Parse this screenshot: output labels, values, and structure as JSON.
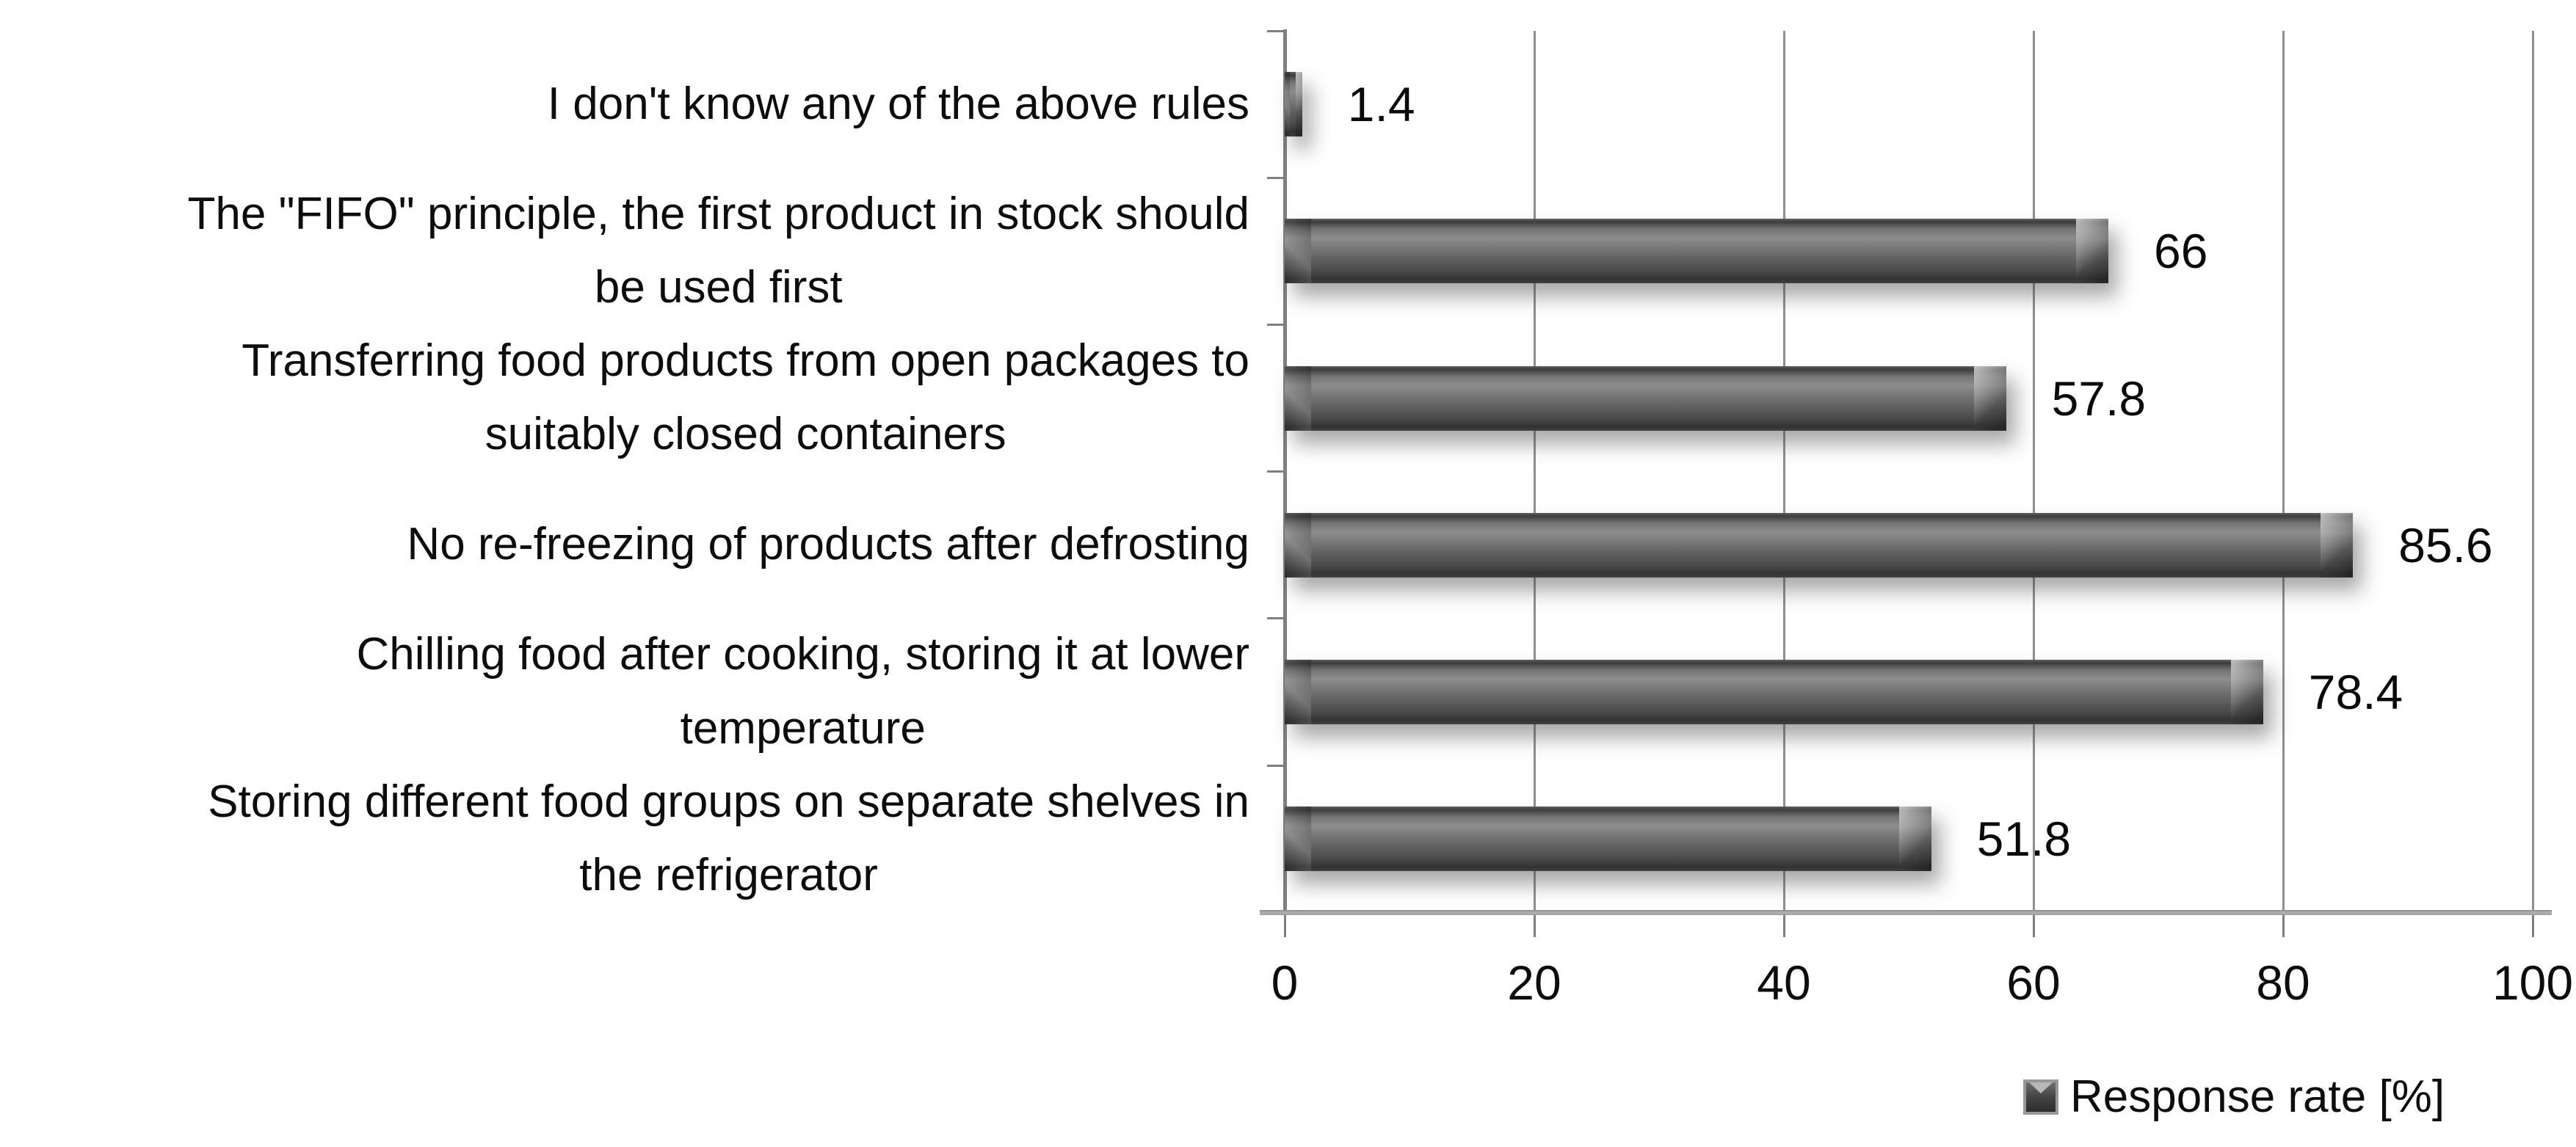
{
  "chart_data": {
    "type": "bar",
    "orientation": "horizontal",
    "title": "",
    "categories": [
      "I don't know any of the above rules",
      "The \"FIFO\" principle, the first product in stock should\nbe used first",
      "Transferring food products from open packages to\nsuitably closed containers",
      "No re-freezing of products after defrosting",
      "Chilling food after cooking, storing it at lower\ntemperature",
      "Storing different food groups on separate shelves in\nthe refrigerator"
    ],
    "series": [
      {
        "name": "Response rate [%]",
        "values": [
          1.4,
          66,
          57.8,
          85.6,
          78.4,
          51.8
        ],
        "value_labels": [
          "1.4",
          "66",
          "57.8",
          "85.6",
          "78.4",
          "51.8"
        ]
      }
    ],
    "x_axis": {
      "min": 0,
      "max": 100,
      "tick_values": [
        0,
        20,
        40,
        60,
        80,
        100
      ],
      "tick_labels": [
        "0",
        "20",
        "40",
        "60",
        "80",
        "100"
      ]
    },
    "grid": "vertical-gridlines-on",
    "legend": {
      "position": "bottom-right",
      "label": "Response rate [%]"
    },
    "colors": {
      "bar_fill": "#4d4d4d",
      "bar_highlight": "#8d8d8d",
      "gridline": "#8f8f8f",
      "axis": "#7f7f7f",
      "text": "#0d0d0d",
      "background": "#ffffff"
    }
  }
}
